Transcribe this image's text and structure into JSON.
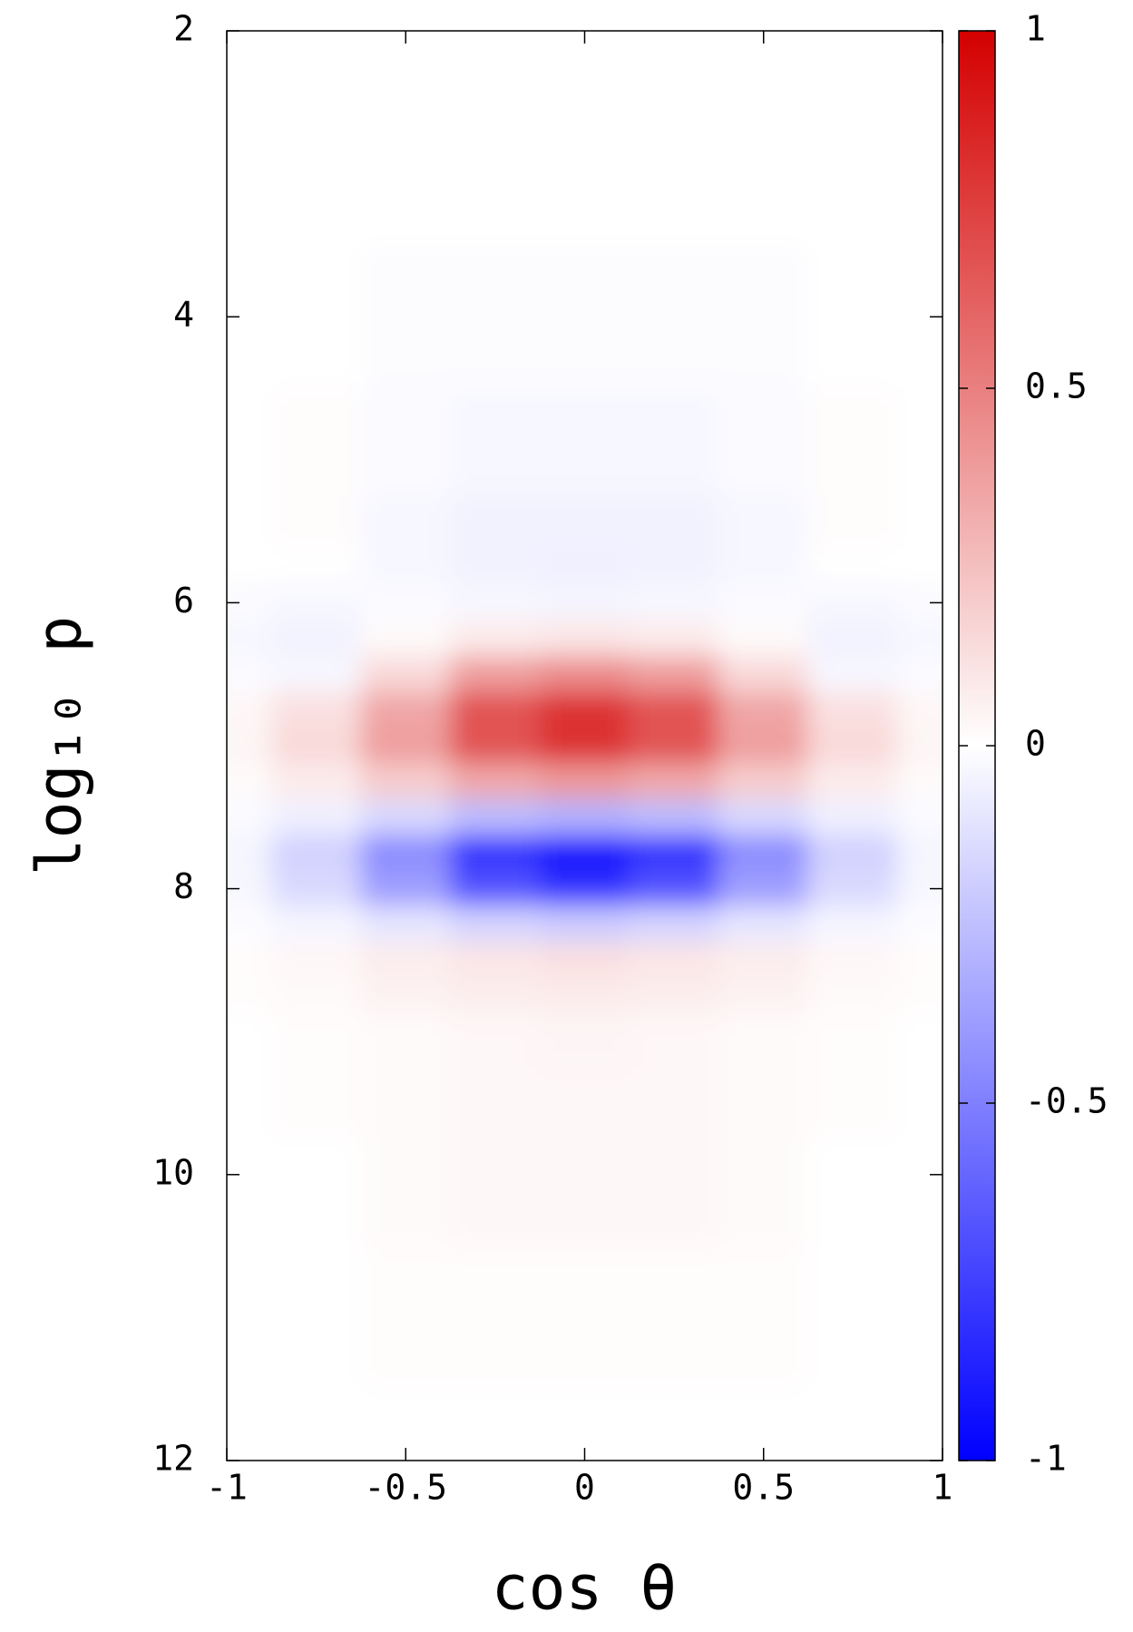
{
  "chart_data": {
    "type": "heatmap",
    "xlabel": "cos θ",
    "ylabel": "log₁₀ p",
    "x": [
      -1,
      -0.75,
      -0.5,
      -0.25,
      0,
      0.25,
      0.5,
      0.75,
      1
    ],
    "y": [
      2,
      3,
      4,
      5,
      5.5,
      5.75,
      6,
      6.25,
      6.5,
      6.75,
      7,
      7.25,
      7.5,
      7.75,
      8,
      8.25,
      8.5,
      8.75,
      9,
      9.5,
      10,
      11,
      12
    ],
    "z": [
      [
        0,
        0,
        0,
        0,
        0,
        0,
        0,
        0,
        0
      ],
      [
        0,
        0,
        0,
        0,
        0,
        0,
        0,
        0,
        0
      ],
      [
        0,
        0,
        -0.01,
        -0.01,
        -0.01,
        -0.01,
        -0.01,
        0,
        0
      ],
      [
        0,
        0.01,
        -0.02,
        -0.03,
        -0.03,
        -0.03,
        -0.02,
        0.01,
        0
      ],
      [
        0,
        0.01,
        -0.03,
        -0.05,
        -0.05,
        -0.05,
        -0.03,
        0.01,
        0
      ],
      [
        0,
        0,
        -0.03,
        -0.05,
        -0.06,
        -0.05,
        -0.03,
        0,
        0
      ],
      [
        -0.02,
        -0.03,
        -0.02,
        -0.03,
        -0.04,
        -0.03,
        -0.02,
        -0.03,
        -0.02
      ],
      [
        -0.03,
        -0.05,
        0.02,
        0.08,
        0.1,
        0.08,
        0.02,
        -0.05,
        -0.03
      ],
      [
        -0.02,
        -0.03,
        0.15,
        0.38,
        0.45,
        0.38,
        0.15,
        -0.03,
        -0.02
      ],
      [
        0.03,
        0.12,
        0.35,
        0.68,
        0.8,
        0.68,
        0.35,
        0.12,
        0.03
      ],
      [
        0.04,
        0.15,
        0.38,
        0.68,
        0.8,
        0.68,
        0.38,
        0.15,
        0.04
      ],
      [
        0.02,
        0.08,
        0.2,
        0.34,
        0.4,
        0.34,
        0.2,
        0.08,
        0.02
      ],
      [
        -0.02,
        -0.06,
        -0.15,
        -0.26,
        -0.3,
        -0.26,
        -0.15,
        -0.06,
        -0.02
      ],
      [
        -0.04,
        -0.18,
        -0.45,
        -0.8,
        -0.95,
        -0.8,
        -0.45,
        -0.18,
        -0.04
      ],
      [
        -0.03,
        -0.15,
        -0.38,
        -0.68,
        -0.8,
        -0.68,
        -0.38,
        -0.15,
        -0.03
      ],
      [
        -0.01,
        -0.04,
        -0.1,
        -0.17,
        -0.2,
        -0.17,
        -0.1,
        -0.04,
        -0.01
      ],
      [
        0.01,
        0.03,
        0.07,
        0.1,
        0.12,
        0.1,
        0.07,
        0.03,
        0.01
      ],
      [
        0.01,
        0.02,
        0.05,
        0.07,
        0.08,
        0.07,
        0.05,
        0.02,
        0.01
      ],
      [
        0,
        0.01,
        0.02,
        0.03,
        0.04,
        0.03,
        0.02,
        0.01,
        0
      ],
      [
        0,
        0.01,
        0.02,
        0.03,
        0.03,
        0.03,
        0.02,
        0.01,
        0
      ],
      [
        0,
        0,
        0.02,
        0.03,
        0.03,
        0.03,
        0.02,
        0,
        0
      ],
      [
        0,
        0,
        0.01,
        0.01,
        0.01,
        0.01,
        0.01,
        0,
        0
      ],
      [
        0,
        0,
        0,
        0,
        0,
        0,
        0,
        0,
        0
      ]
    ],
    "xlim": [
      -1,
      1
    ],
    "xticks": [
      -1,
      -0.5,
      0,
      0.5,
      1
    ],
    "ylim": [
      2,
      12
    ],
    "yticks": [
      2,
      4,
      6,
      8,
      10,
      12
    ],
    "y_reversed": true,
    "zlim": [
      -1,
      1
    ],
    "zticks": [
      -1,
      -0.5,
      0,
      0.5,
      1
    ],
    "colormap": {
      "low": "#0000ff",
      "mid": "#ffffff",
      "high": "#d40000"
    }
  }
}
